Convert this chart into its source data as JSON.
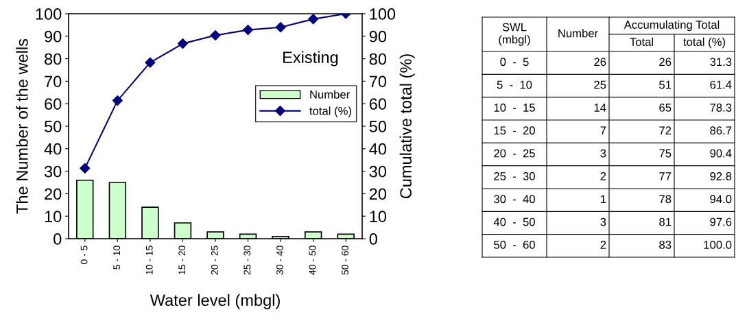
{
  "chart_data": [
    {
      "type": "bar",
      "categories": [
        "0 - 5",
        "5 - 10",
        "10 - 15",
        "15 - 20",
        "20 - 25",
        "25 - 30",
        "30 - 40",
        "40 - 50",
        "50 - 60"
      ],
      "xlabel": "Water level (mbgl)",
      "ylabel": "The Number of the wells",
      "y2label": "Cumulative total (%)",
      "series": [
        {
          "name": "Number",
          "type": "bar",
          "color": "#ccffcc",
          "values": [
            26,
            25,
            14,
            7,
            3,
            2,
            1,
            3,
            2
          ]
        },
        {
          "name": "total (%)",
          "type": "line",
          "axis": "y2",
          "color": "#000080",
          "marker": "diamond",
          "values": [
            31.3,
            61.4,
            78.3,
            86.7,
            90.4,
            92.8,
            94.0,
            97.6,
            100.0
          ]
        }
      ],
      "ylim": [
        0,
        100
      ],
      "yticks": [
        0,
        10,
        20,
        30,
        40,
        50,
        60,
        70,
        80,
        90,
        100
      ],
      "y2lim": [
        0,
        100
      ],
      "y2ticks": [
        0,
        10,
        20,
        30,
        40,
        50,
        60,
        70,
        80,
        90,
        100
      ],
      "annotations": [
        "Existing"
      ],
      "legend": "right",
      "grid": false
    },
    {
      "type": "other",
      "data_labels": true,
      "xlabel": "SWL\n(mbgl)",
      "annotations": [
        "Accumulating Total"
      ],
      "categories": [
        "0  -  5",
        "5  -  10",
        "10  -  15",
        "15  -  20",
        "20  -  25",
        "25  -  30",
        "30  -  40",
        "40  -  50",
        "50  -  60"
      ],
      "series": [
        {
          "name": "Number",
          "values": [
            26,
            25,
            14,
            7,
            3,
            2,
            1,
            3,
            2
          ]
        },
        {
          "name": "Total",
          "values": [
            26,
            51,
            65,
            72,
            75,
            77,
            78,
            81,
            83
          ]
        },
        {
          "name": "total (%)",
          "values": [
            31.3,
            61.4,
            78.3,
            86.7,
            90.4,
            92.8,
            94.0,
            97.6,
            100.0
          ],
          "value_labels": [
            "31.3",
            "61.4",
            "78.3",
            "86.7",
            "90.4",
            "92.8",
            "94.0",
            "97.6",
            "100.0"
          ]
        }
      ]
    }
  ]
}
